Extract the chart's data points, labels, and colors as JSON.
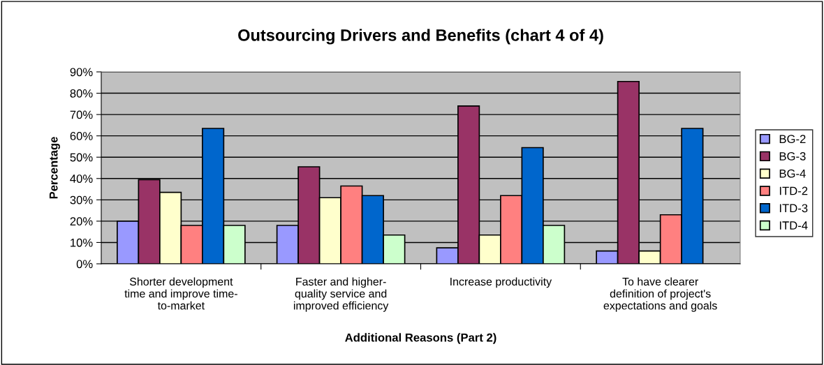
{
  "chart_data": {
    "type": "bar",
    "title": "Outsourcing Drivers and Benefits (chart 4 of 4)",
    "xlabel": "Additional Reasons (Part 2)",
    "ylabel": "Percentage",
    "categories": [
      "Shorter development\ntime and improve time-\nto-market",
      "Faster and higher-\nquality service and\nimproved efficiency",
      "Increase productivity",
      "To have clearer\ndefinition of project's\nexpectations and goals"
    ],
    "series": [
      {
        "name": "BG-2",
        "color": "#9999ff",
        "values": [
          20,
          18,
          7.5,
          6
        ]
      },
      {
        "name": "BG-3",
        "color": "#993366",
        "values": [
          39.5,
          45.5,
          74,
          85.5
        ]
      },
      {
        "name": "BG-4",
        "color": "#ffffcc",
        "values": [
          33.5,
          31,
          13.5,
          6
        ]
      },
      {
        "name": "ITD-2",
        "color": "#ff8080",
        "values": [
          18,
          36.5,
          32,
          23
        ]
      },
      {
        "name": "ITD-3",
        "color": "#0066cc",
        "values": [
          63.5,
          32,
          54.5,
          63.5
        ]
      },
      {
        "name": "ITD-4",
        "color": "#ccffcc",
        "values": [
          18,
          13.5,
          18,
          null
        ]
      }
    ],
    "ylim": [
      0,
      90
    ],
    "yticks": [
      {
        "value": 0,
        "label": "0%"
      },
      {
        "value": 10,
        "label": "10%"
      },
      {
        "value": 20,
        "label": "20%"
      },
      {
        "value": 30,
        "label": "30%"
      },
      {
        "value": 40,
        "label": "40%"
      },
      {
        "value": 50,
        "label": "50%"
      },
      {
        "value": 60,
        "label": "60%"
      },
      {
        "value": 70,
        "label": "70%"
      },
      {
        "value": 80,
        "label": "80%"
      },
      {
        "value": 90,
        "label": "90%"
      }
    ],
    "grid": "y",
    "legend": "right"
  }
}
